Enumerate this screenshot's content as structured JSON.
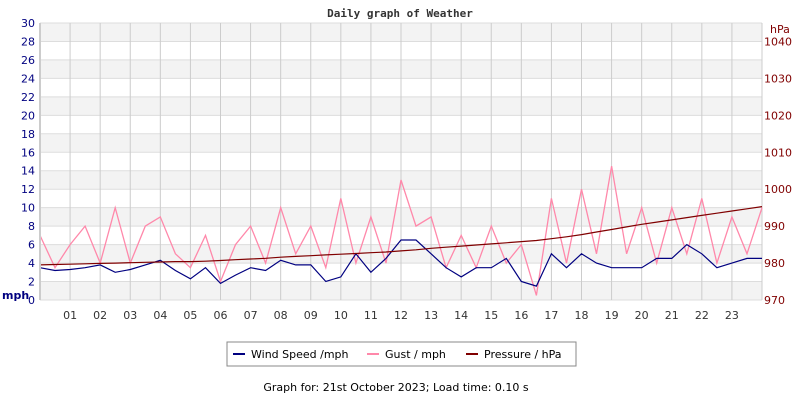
{
  "chart_data": {
    "type": "line",
    "title": "Daily graph of Weather",
    "footer": "Graph for: 21st October 2023; Load time: 0.10 s",
    "x_ticks": [
      "01",
      "02",
      "03",
      "04",
      "05",
      "06",
      "07",
      "08",
      "09",
      "10",
      "11",
      "12",
      "13",
      "14",
      "15",
      "16",
      "17",
      "18",
      "19",
      "20",
      "21",
      "22",
      "23"
    ],
    "xlim_hours": [
      0,
      24
    ],
    "left_axis": {
      "label": "mph",
      "ylim": [
        0,
        30
      ],
      "ticks": [
        0,
        2,
        4,
        6,
        8,
        10,
        12,
        14,
        16,
        18,
        20,
        22,
        24,
        26,
        28,
        30
      ],
      "color": "#000080"
    },
    "right_axis": {
      "label": "hPa",
      "ylim": [
        970,
        1045
      ],
      "ticks": [
        970,
        980,
        990,
        1000,
        1010,
        1020,
        1030,
        1040
      ],
      "color": "#800000"
    },
    "grid": true,
    "legend_placement": "bottom",
    "x_hours_halfhourly": [
      0,
      0.5,
      1,
      1.5,
      2,
      2.5,
      3,
      3.5,
      4,
      4.5,
      5,
      5.5,
      6,
      6.5,
      7,
      7.5,
      8,
      8.5,
      9,
      9.5,
      10,
      10.5,
      11,
      11.5,
      12,
      12.5,
      13,
      13.5,
      14,
      14.5,
      15,
      15.5,
      16,
      16.5,
      17,
      17.5,
      18,
      18.5,
      19,
      19.5,
      20,
      20.5,
      21,
      21.5,
      22,
      22.5,
      23,
      23.5,
      24
    ],
    "series": [
      {
        "name": "Wind Speed /mph",
        "axis": "left",
        "color": "#000080",
        "values": [
          3.5,
          3.2,
          3.3,
          3.5,
          3.8,
          3.0,
          3.3,
          3.8,
          4.3,
          3.2,
          2.3,
          3.5,
          1.8,
          2.7,
          3.5,
          3.2,
          4.3,
          3.8,
          3.8,
          2.0,
          2.5,
          5.0,
          3.0,
          4.5,
          6.5,
          6.5,
          5.0,
          3.5,
          2.5,
          3.5,
          3.5,
          4.5,
          2.0,
          1.5,
          5.0,
          3.5,
          5.0,
          4.0,
          3.5,
          3.5,
          3.5,
          4.5,
          4.5,
          6.0,
          5.0,
          3.5,
          4.0,
          4.5,
          4.5
        ]
      },
      {
        "name": "Gust / mph",
        "axis": "left",
        "color": "#ff88aa",
        "values": [
          7,
          3.5,
          6,
          8,
          4,
          10,
          4,
          8,
          9,
          5,
          3.5,
          7,
          2,
          6,
          8,
          4,
          10,
          5,
          8,
          3.5,
          11,
          4,
          9,
          4,
          13,
          8,
          9,
          3.5,
          7,
          3.5,
          8,
          4,
          6,
          0.5,
          11,
          4,
          12,
          5,
          14.5,
          5,
          10,
          4,
          10,
          5,
          11,
          4,
          9,
          5,
          10
        ]
      },
      {
        "name": "Pressure / hPa",
        "axis": "right",
        "color": "#800000",
        "values": [
          979.5,
          979.6,
          979.7,
          979.8,
          979.9,
          980.0,
          980.1,
          980.2,
          980.3,
          980.4,
          980.4,
          980.5,
          980.7,
          980.9,
          981.1,
          981.3,
          981.6,
          981.8,
          982.0,
          982.2,
          982.4,
          982.6,
          982.8,
          983.0,
          983.3,
          983.6,
          984.0,
          984.3,
          984.6,
          984.9,
          985.2,
          985.5,
          985.8,
          986.1,
          986.6,
          987.1,
          987.7,
          988.4,
          989.1,
          989.8,
          990.5,
          991.1,
          991.7,
          992.3,
          992.9,
          993.5,
          994.1,
          994.7,
          995.3
        ]
      }
    ]
  }
}
